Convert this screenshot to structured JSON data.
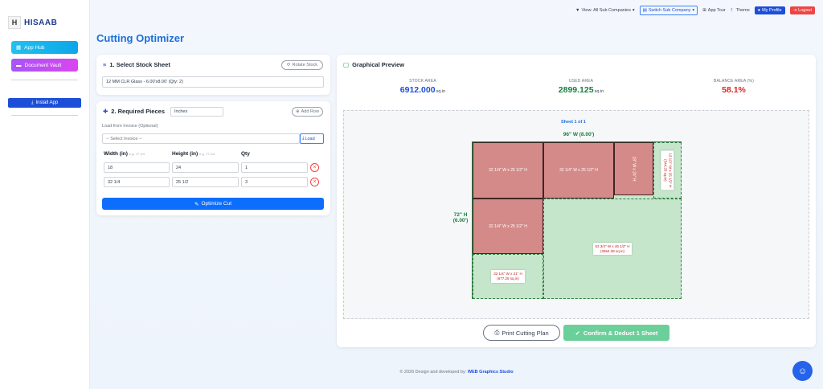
{
  "app": {
    "logo_letter": "H",
    "name": "HISAAB",
    "page_title": "Cutting Optimizer"
  },
  "sidebar": {
    "app_hub": "App Hub",
    "document_vault": "Document Vault",
    "install_app": "Install App"
  },
  "topbar": {
    "view_all": "View: All Sub Companies",
    "switch": "Switch Sub Company",
    "tour": "App Tour",
    "theme": "Theme",
    "profile": "My Profile",
    "logout": "Logout"
  },
  "stock": {
    "title": "1. Select Stock Sheet",
    "rotate": "Rotate Stock",
    "selected": "12 MM CLR Glass - 6.00'x8.00' (Qty: 2)"
  },
  "pieces": {
    "title": "2. Required Pieces",
    "unit": "Inches",
    "add_row": "Add Row",
    "load_label": "Load from Invoice (Optional)",
    "invoice_placeholder": "-- Select Invoice --",
    "load_btn": "Load",
    "col_width": "Width (in)",
    "col_width_hint": "e.g. 77 1/4",
    "col_height": "Height (in)",
    "col_height_hint": "e.g. 77 1/4",
    "col_qty": "Qty",
    "rows": [
      {
        "width": "18",
        "height": "24",
        "qty": "1"
      },
      {
        "width": "32 1/4",
        "height": "25 1/2",
        "qty": "3"
      }
    ],
    "optimize": "Optimize Cut"
  },
  "preview": {
    "title": "Graphical Preview",
    "stock_label": "STOCK AREA",
    "stock_value": "6912.000",
    "used_label": "USED AREA",
    "used_value": "2899.125",
    "balance_label": "BALANCE AREA (%)",
    "balance_value": "58.1%",
    "unit": "sq.in",
    "sheet_caption": "Sheet 1 of 1",
    "width_label": "96\" W (8.00')",
    "height_label_1": "72\" H",
    "height_label_2": "(6.00')",
    "piece_1": "32 1/4\" W x 25 1/2\" H",
    "piece_2": "32 1/4\" W x 25 1/2\" H",
    "piece_3": "18\" W x 24\" H",
    "piece_4": "32 1/4\" W x 25 1/2\" H",
    "waste_1": "13 1/2\" W x 25 1/2\" H",
    "waste_1b": "(344.25 sq.in)",
    "waste_2": "63 3/4\" W x 46 1/2\" H",
    "waste_2b": "(2964.38 sq.in)",
    "waste_3": "32 1/4\" W x 21\" H",
    "waste_3b": "(677.25 sq.in)",
    "print": "Print Cutting Plan",
    "confirm": "Confirm & Deduct 1 Sheet"
  },
  "footer": {
    "text": "© 2026 Design and developed by:",
    "studio": "WEB Graphics Studio"
  },
  "colors": {
    "accent": "#0d6efd",
    "used": "#15803d",
    "balance": "#dc2626",
    "piece": "#d48a88",
    "waste": "#c9e7cf"
  }
}
